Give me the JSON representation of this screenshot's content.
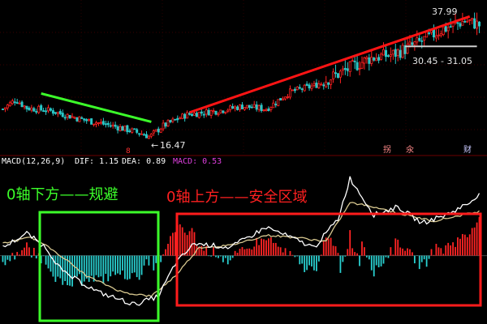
{
  "chart_data": {
    "type": "candlestick+macd",
    "title": "MACD(12,26,9)",
    "price_panel": {
      "ylim": [
        14,
        40
      ],
      "price_labels": {
        "high": "37.99",
        "low": "16.47",
        "range": "30.45 - 31.05"
      },
      "markers": {
        "m1": "8",
        "m2": "拐",
        "m3": "氽",
        "m4": "财"
      },
      "colors": {
        "up": "#ff2020",
        "down": "#29c7c7",
        "uptrend": "#ff1414",
        "downtrend": "#3cff2a"
      }
    },
    "macd_header": {
      "name": "MACD(12,26,9)",
      "dif": "DIF: 1.15",
      "dea": "DEA: 0.89",
      "macd": "MACD: 0.53",
      "colors": {
        "name": "#ffffff",
        "dif": "#ffffff",
        "dea": "#ffffff",
        "macd": "#e040e0"
      }
    },
    "macd_panel": {
      "ylim": [
        -1.6,
        2.2
      ],
      "colors": {
        "positive": "#ff2424",
        "negative": "#29d0d0",
        "dif": "#ffffff",
        "dea": "#d8c890"
      }
    },
    "annotations": {
      "below_zero": {
        "text": "0轴下方——规避",
        "color": "#3cff2a"
      },
      "above_zero": {
        "text": "0轴上方——安全区域",
        "color": "#ff2020"
      }
    }
  }
}
